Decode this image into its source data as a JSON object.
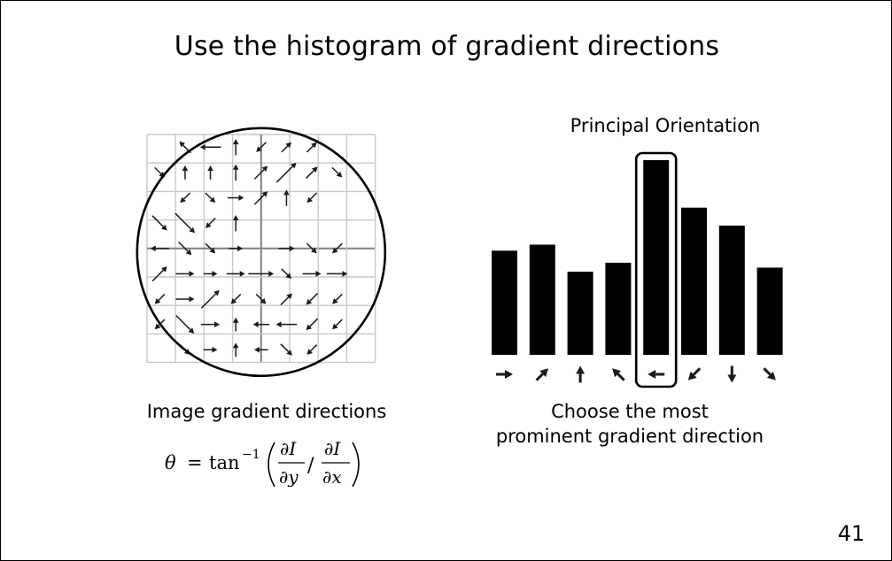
{
  "title": "Use the histogram of gradient directions",
  "left_label": "Image gradient directions",
  "formula": {
    "lhs": "θ",
    "eq": "=",
    "func": "tan",
    "sup": "−1",
    "num1": "∂I",
    "den1": "∂y",
    "slash": "/",
    "num2": "∂I",
    "den2": "∂x"
  },
  "right_title": "Principal Orientation",
  "right_label_line1": "Choose the most",
  "right_label_line2": "prominent gradient direction",
  "page_number": "41",
  "histogram": {
    "values": [
      0.535,
      0.566,
      0.427,
      0.473,
      1.0,
      0.756,
      0.664,
      0.448
    ],
    "directions": [
      "right",
      "up-right",
      "up",
      "up-left",
      "left",
      "down-left",
      "down",
      "down-right"
    ],
    "highlighted_index": 4
  },
  "gradient_field": {
    "grid_cells": 8,
    "arrows": [
      {
        "row": 0,
        "col": 1,
        "dir": "up-left",
        "mag": 0.4
      },
      {
        "row": 0,
        "col": 2,
        "dir": "left",
        "mag": 0.6
      },
      {
        "row": 0,
        "col": 3,
        "dir": "up",
        "mag": 0.4
      },
      {
        "row": 0,
        "col": 4,
        "dir": "down-left",
        "mag": 0.3
      },
      {
        "row": 0,
        "col": 5,
        "dir": "up-right",
        "mag": 0.3
      },
      {
        "row": 0,
        "col": 6,
        "dir": "up-right",
        "mag": 0.3
      },
      {
        "row": 1,
        "col": 0,
        "dir": "down-right",
        "mag": 0.3
      },
      {
        "row": 1,
        "col": 1,
        "dir": "up",
        "mag": 0.3
      },
      {
        "row": 1,
        "col": 2,
        "dir": "up",
        "mag": 0.3
      },
      {
        "row": 1,
        "col": 3,
        "dir": "up",
        "mag": 0.4
      },
      {
        "row": 1,
        "col": 4,
        "dir": "up-right",
        "mag": 0.5
      },
      {
        "row": 1,
        "col": 5,
        "dir": "up-right",
        "mag": 0.9
      },
      {
        "row": 1,
        "col": 6,
        "dir": "up-right",
        "mag": 0.4
      },
      {
        "row": 1,
        "col": 7,
        "dir": "down-right",
        "mag": 0.3
      },
      {
        "row": 2,
        "col": 1,
        "dir": "down-left",
        "mag": 0.3
      },
      {
        "row": 2,
        "col": 2,
        "dir": "down-right",
        "mag": 0.3
      },
      {
        "row": 2,
        "col": 3,
        "dir": "right",
        "mag": 0.4
      },
      {
        "row": 2,
        "col": 4,
        "dir": "up-right",
        "mag": 0.5
      },
      {
        "row": 2,
        "col": 5,
        "dir": "up",
        "mag": 0.4
      },
      {
        "row": 2,
        "col": 6,
        "dir": "down-left",
        "mag": 0.3
      },
      {
        "row": 3,
        "col": 0,
        "dir": "down-right",
        "mag": 0.6
      },
      {
        "row": 3,
        "col": 1,
        "dir": "down-right",
        "mag": 0.9
      },
      {
        "row": 3,
        "col": 2,
        "dir": "down-left",
        "mag": 0.3
      },
      {
        "row": 3,
        "col": 3,
        "dir": "up",
        "mag": 0.4
      },
      {
        "row": 4,
        "col": 0,
        "dir": "left",
        "mag": 0.5
      },
      {
        "row": 4,
        "col": 1,
        "dir": "down-right",
        "mag": 0.5
      },
      {
        "row": 4,
        "col": 2,
        "dir": "down-right",
        "mag": 0.3
      },
      {
        "row": 4,
        "col": 3,
        "dir": "right",
        "mag": 0.3
      },
      {
        "row": 4,
        "col": 5,
        "dir": "right",
        "mag": 0.4
      },
      {
        "row": 4,
        "col": 6,
        "dir": "down-right",
        "mag": 0.3
      },
      {
        "row": 4,
        "col": 7,
        "dir": "down-left",
        "mag": 0.3
      },
      {
        "row": 5,
        "col": 0,
        "dir": "up-right",
        "mag": 0.6
      },
      {
        "row": 5,
        "col": 1,
        "dir": "right",
        "mag": 0.5
      },
      {
        "row": 5,
        "col": 2,
        "dir": "right",
        "mag": 0.3
      },
      {
        "row": 5,
        "col": 3,
        "dir": "right",
        "mag": 0.5
      },
      {
        "row": 5,
        "col": 4,
        "dir": "right",
        "mag": 0.8
      },
      {
        "row": 5,
        "col": 5,
        "dir": "down-right",
        "mag": 0.3
      },
      {
        "row": 5,
        "col": 6,
        "dir": "right",
        "mag": 0.5
      },
      {
        "row": 5,
        "col": 7,
        "dir": "right",
        "mag": 0.6
      },
      {
        "row": 6,
        "col": 0,
        "dir": "down-left",
        "mag": 0.3
      },
      {
        "row": 6,
        "col": 1,
        "dir": "right",
        "mag": 0.5
      },
      {
        "row": 6,
        "col": 2,
        "dir": "up-right",
        "mag": 0.8
      },
      {
        "row": 6,
        "col": 3,
        "dir": "down-left",
        "mag": 0.3
      },
      {
        "row": 6,
        "col": 4,
        "dir": "down-right",
        "mag": 0.3
      },
      {
        "row": 6,
        "col": 5,
        "dir": "up-right",
        "mag": 0.4
      },
      {
        "row": 6,
        "col": 6,
        "dir": "down-left",
        "mag": 0.4
      },
      {
        "row": 6,
        "col": 7,
        "dir": "down-left",
        "mag": 0.3
      },
      {
        "row": 7,
        "col": 0,
        "dir": "down-left",
        "mag": 0.3
      },
      {
        "row": 7,
        "col": 1,
        "dir": "down-right",
        "mag": 0.8
      },
      {
        "row": 7,
        "col": 2,
        "dir": "right",
        "mag": 0.5
      },
      {
        "row": 7,
        "col": 3,
        "dir": "up",
        "mag": 0.3
      },
      {
        "row": 7,
        "col": 4,
        "dir": "left",
        "mag": 0.4
      },
      {
        "row": 7,
        "col": 5,
        "dir": "left",
        "mag": 0.6
      },
      {
        "row": 7,
        "col": 6,
        "dir": "down-left",
        "mag": 0.4
      },
      {
        "row": 7,
        "col": 7,
        "dir": "down-left",
        "mag": 0.3
      },
      {
        "row": 8,
        "col": 1,
        "dir": "down-right",
        "mag": 0.3
      },
      {
        "row": 8,
        "col": 2,
        "dir": "right",
        "mag": 0.3
      },
      {
        "row": 8,
        "col": 3,
        "dir": "up",
        "mag": 0.3
      },
      {
        "row": 8,
        "col": 4,
        "dir": "left",
        "mag": 0.3
      },
      {
        "row": 8,
        "col": 5,
        "dir": "down-right",
        "mag": 0.4
      },
      {
        "row": 8,
        "col": 6,
        "dir": "down-left",
        "mag": 0.3
      }
    ]
  },
  "colors": {
    "grid_line": "#c8c8c8",
    "grid_divider": "#808080",
    "arrow": "#1a1a1a",
    "bar": "#000000",
    "circle": "#000000"
  }
}
